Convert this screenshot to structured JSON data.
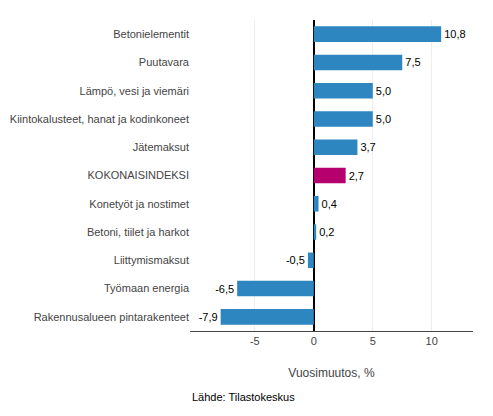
{
  "chart_data": {
    "type": "bar",
    "orientation": "horizontal",
    "categories": [
      "Betonielementit",
      "Puutavara",
      "Lämpö, vesi ja viemäri",
      "Kiintokalusteet, hanat ja kodinkoneet",
      "Jätemaksut",
      "KOKONAISINDEKSI",
      "Konetyöt ja nostimet",
      "Betoni, tiilet ja harkot",
      "Liittymismaksut",
      "Työmaan energia",
      "Rakennusalueen pintarakenteet"
    ],
    "values": [
      10.8,
      7.5,
      5.0,
      5.0,
      3.7,
      2.7,
      0.4,
      0.2,
      -0.5,
      -6.5,
      -7.9
    ],
    "value_labels": [
      "10,8",
      "7,5",
      "5,0",
      "5,0",
      "3,7",
      "2,7",
      "0,4",
      "0,2",
      "-0,5",
      "-6,5",
      "-7,9"
    ],
    "colors": [
      "#2e86c1",
      "#2e86c1",
      "#2e86c1",
      "#2e86c1",
      "#2e86c1",
      "#b5006e",
      "#2e86c1",
      "#2e86c1",
      "#2e86c1",
      "#2e86c1",
      "#2e86c1"
    ],
    "xlabel": "Vuosimuutos, %",
    "xlim": [
      -10.5,
      13.5
    ],
    "xticks": [
      -5,
      0,
      5,
      10
    ],
    "grid": true,
    "data_labels": true,
    "annotations": [
      "Lähde: Tilastokeskus"
    ]
  }
}
